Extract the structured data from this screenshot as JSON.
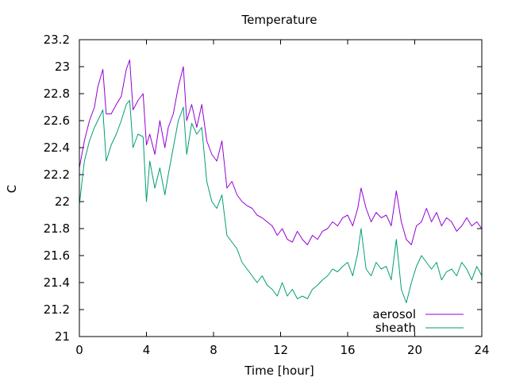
{
  "chart_data": {
    "type": "line",
    "title": "Temperature",
    "xlabel": "Time [hour]",
    "ylabel": "C",
    "xlim": [
      0,
      24
    ],
    "ylim": [
      21,
      23.2
    ],
    "xticks": [
      0,
      4,
      8,
      12,
      16,
      20,
      24
    ],
    "yticks": [
      21,
      21.2,
      21.4,
      21.6,
      21.8,
      22,
      22.2,
      22.4,
      22.6,
      22.8,
      23,
      23.2
    ],
    "xtick_labels": [
      "0",
      "4",
      "8",
      "12",
      "16",
      "20",
      "24"
    ],
    "ytick_labels": [
      "21",
      "21.2",
      "21.4",
      "21.6",
      "21.8",
      "22",
      "22.2",
      "22.4",
      "22.6",
      "22.8",
      "23",
      "23.2"
    ],
    "grid": false,
    "legend_position": "bottom-right",
    "series": [
      {
        "name": "aerosol",
        "color": "#9400d3",
        "x": [
          0,
          0.3,
          0.6,
          0.9,
          1.1,
          1.4,
          1.6,
          1.9,
          2.2,
          2.5,
          2.8,
          3.0,
          3.2,
          3.5,
          3.8,
          4.0,
          4.2,
          4.5,
          4.8,
          5.1,
          5.3,
          5.6,
          5.9,
          6.2,
          6.4,
          6.7,
          7.0,
          7.3,
          7.6,
          7.9,
          8.2,
          8.5,
          8.8,
          9.1,
          9.4,
          9.7,
          10.0,
          10.3,
          10.6,
          10.9,
          11.2,
          11.5,
          11.8,
          12.1,
          12.4,
          12.7,
          13.0,
          13.3,
          13.6,
          13.9,
          14.2,
          14.5,
          14.8,
          15.1,
          15.4,
          15.7,
          16.0,
          16.3,
          16.6,
          16.8,
          17.1,
          17.4,
          17.7,
          18.0,
          18.3,
          18.6,
          18.9,
          19.2,
          19.5,
          19.8,
          20.1,
          20.4,
          20.7,
          21.0,
          21.3,
          21.6,
          21.9,
          22.2,
          22.5,
          22.8,
          23.1,
          23.4,
          23.7,
          24.0
        ],
        "y": [
          22.25,
          22.45,
          22.6,
          22.7,
          22.85,
          22.98,
          22.65,
          22.65,
          22.72,
          22.78,
          22.98,
          23.05,
          22.68,
          22.75,
          22.8,
          22.42,
          22.5,
          22.35,
          22.6,
          22.4,
          22.55,
          22.65,
          22.85,
          23.0,
          22.6,
          22.72,
          22.55,
          22.72,
          22.45,
          22.35,
          22.3,
          22.45,
          22.1,
          22.15,
          22.05,
          22.0,
          21.97,
          21.95,
          21.9,
          21.88,
          21.85,
          21.82,
          21.75,
          21.8,
          21.72,
          21.7,
          21.78,
          21.72,
          21.68,
          21.75,
          21.72,
          21.78,
          21.8,
          21.85,
          21.82,
          21.88,
          21.9,
          21.82,
          21.95,
          22.1,
          21.95,
          21.85,
          21.92,
          21.88,
          21.9,
          21.82,
          22.08,
          21.85,
          21.72,
          21.68,
          21.82,
          21.85,
          21.95,
          21.85,
          21.92,
          21.82,
          21.88,
          21.85,
          21.78,
          21.82,
          21.88,
          21.82,
          21.85,
          21.8
        ]
      },
      {
        "name": "sheath",
        "color": "#009e73",
        "x": [
          0,
          0.3,
          0.6,
          0.9,
          1.1,
          1.4,
          1.6,
          1.9,
          2.2,
          2.5,
          2.8,
          3.0,
          3.2,
          3.5,
          3.8,
          4.0,
          4.2,
          4.5,
          4.8,
          5.1,
          5.3,
          5.6,
          5.9,
          6.2,
          6.4,
          6.7,
          7.0,
          7.3,
          7.6,
          7.9,
          8.2,
          8.5,
          8.8,
          9.1,
          9.4,
          9.7,
          10.0,
          10.3,
          10.6,
          10.9,
          11.2,
          11.5,
          11.8,
          12.1,
          12.4,
          12.7,
          13.0,
          13.3,
          13.6,
          13.9,
          14.2,
          14.5,
          14.8,
          15.1,
          15.4,
          15.7,
          16.0,
          16.3,
          16.6,
          16.8,
          17.1,
          17.4,
          17.7,
          18.0,
          18.3,
          18.6,
          18.9,
          19.2,
          19.5,
          19.8,
          20.1,
          20.4,
          20.7,
          21.0,
          21.3,
          21.6,
          21.9,
          22.2,
          22.5,
          22.8,
          23.1,
          23.4,
          23.7,
          24.0
        ],
        "y": [
          21.98,
          22.3,
          22.45,
          22.55,
          22.6,
          22.68,
          22.3,
          22.42,
          22.5,
          22.6,
          22.72,
          22.75,
          22.4,
          22.5,
          22.48,
          22.0,
          22.3,
          22.1,
          22.25,
          22.05,
          22.2,
          22.4,
          22.6,
          22.7,
          22.35,
          22.58,
          22.5,
          22.55,
          22.15,
          22.0,
          21.95,
          22.05,
          21.75,
          21.7,
          21.65,
          21.55,
          21.5,
          21.45,
          21.4,
          21.45,
          21.38,
          21.35,
          21.3,
          21.4,
          21.3,
          21.35,
          21.28,
          21.3,
          21.28,
          21.35,
          21.38,
          21.42,
          21.45,
          21.5,
          21.48,
          21.52,
          21.55,
          21.45,
          21.62,
          21.8,
          21.5,
          21.45,
          21.55,
          21.5,
          21.52,
          21.42,
          21.72,
          21.35,
          21.25,
          21.4,
          21.52,
          21.6,
          21.55,
          21.5,
          21.55,
          21.42,
          21.48,
          21.5,
          21.45,
          21.55,
          21.5,
          21.42,
          21.52,
          21.45
        ]
      }
    ]
  }
}
